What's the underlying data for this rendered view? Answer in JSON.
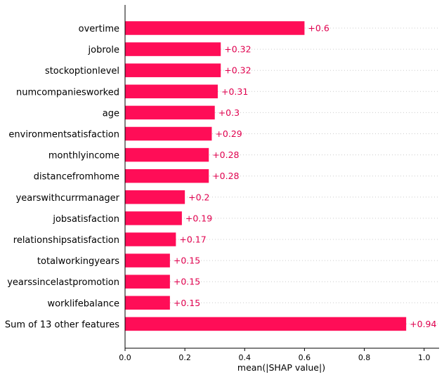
{
  "chart_data": {
    "type": "bar",
    "orientation": "horizontal",
    "categories": [
      "overtime",
      "jobrole",
      "stockoptionlevel",
      "numcompaniesworked",
      "age",
      "environmentsatisfaction",
      "monthlyincome",
      "distancefromhome",
      "yearswithcurrmanager",
      "jobsatisfaction",
      "relationshipsatisfaction",
      "totalworkingyears",
      "yearssincelastpromotion",
      "worklifebalance",
      "Sum of 13 other features"
    ],
    "values": [
      0.6,
      0.32,
      0.32,
      0.31,
      0.3,
      0.29,
      0.28,
      0.28,
      0.2,
      0.19,
      0.17,
      0.15,
      0.15,
      0.15,
      0.94
    ],
    "value_labels": [
      "+0.6",
      "+0.32",
      "+0.32",
      "+0.31",
      "+0.3",
      "+0.29",
      "+0.28",
      "+0.28",
      "+0.2",
      "+0.19",
      "+0.17",
      "+0.15",
      "+0.15",
      "+0.15",
      "+0.94"
    ],
    "xlabel": "mean(|SHAP value|)",
    "xlim": [
      0.0,
      1.05
    ],
    "xticks": [
      0.0,
      0.2,
      0.4,
      0.6,
      0.8,
      1.0
    ],
    "xtick_labels": [
      "0.0",
      "0.2",
      "0.4",
      "0.6",
      "0.8",
      "1.0"
    ],
    "bar_color": "#ff0d57",
    "label_color": "#e0004e",
    "grid": "dotted horizontal guides per row"
  }
}
